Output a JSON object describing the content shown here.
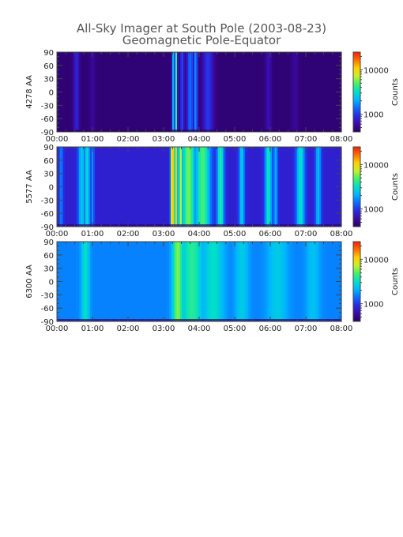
{
  "title": "All-Sky Imager at South Pole (2003-08-23)",
  "subtitle": "Geomagnetic Pole-Equator",
  "colors": {
    "frame": "#444444",
    "text": "#222222",
    "title": "#555555",
    "colormap": [
      "#2a0060",
      "#3b0aa8",
      "#2a2ae0",
      "#0a6cff",
      "#00b4ff",
      "#00e0c8",
      "#40f070",
      "#c8f028",
      "#ffd000",
      "#ff7000",
      "#ff1a00"
    ]
  },
  "chart_data": [
    {
      "type": "heatmap",
      "ylabel": "4278 AA",
      "x_ticks": [
        "00:00",
        "01:00",
        "02:00",
        "03:00",
        "04:00",
        "05:00",
        "06:00",
        "07:00",
        "08:00"
      ],
      "y_ticks": [
        "90",
        "60",
        "30",
        "0",
        "-30",
        "-60",
        "-90"
      ],
      "xlim": [
        "00:00",
        "08:00"
      ],
      "ylim": [
        -90,
        90
      ],
      "colorbar": {
        "label": "Counts",
        "ticks": [
          "10000",
          "1000"
        ],
        "scale": "log"
      },
      "background_level": 0.03,
      "features": [
        {
          "t": 0.55,
          "w": 0.08,
          "level": 0.18
        },
        {
          "t": 1.0,
          "w": 0.08,
          "level": 0.08
        },
        {
          "t": 3.28,
          "w": 0.04,
          "level": 0.45
        },
        {
          "t": 3.35,
          "w": 0.04,
          "level": 0.6
        },
        {
          "t": 3.52,
          "w": 0.06,
          "level": 0.25
        },
        {
          "t": 3.75,
          "w": 0.1,
          "level": 0.3
        },
        {
          "t": 3.9,
          "w": 0.06,
          "level": 0.35
        },
        {
          "t": 4.25,
          "w": 0.15,
          "level": 0.22
        },
        {
          "t": 5.95,
          "w": 0.08,
          "level": 0.12
        },
        {
          "t": 6.7,
          "w": 0.1,
          "level": 0.08
        }
      ]
    },
    {
      "type": "heatmap",
      "ylabel": "5577 AA",
      "x_ticks": [
        "00:00",
        "01:00",
        "02:00",
        "03:00",
        "04:00",
        "05:00",
        "06:00",
        "07:00",
        "08:00"
      ],
      "y_ticks": [
        "90",
        "60",
        "30",
        "0",
        "-30",
        "-60",
        "-90"
      ],
      "xlim": [
        "00:00",
        "08:00"
      ],
      "ylim": [
        -90,
        90
      ],
      "colorbar": {
        "label": "Counts",
        "ticks": [
          "10000",
          "1000"
        ],
        "scale": "log"
      },
      "background_level": 0.17,
      "features": [
        {
          "t": 0.12,
          "w": 0.06,
          "level": 0.32
        },
        {
          "t": 0.7,
          "w": 0.1,
          "level": 0.45
        },
        {
          "t": 0.85,
          "w": 0.08,
          "level": 0.5
        },
        {
          "t": 1.0,
          "w": 0.05,
          "level": 0.35
        },
        {
          "t": 3.25,
          "w": 0.05,
          "level": 0.88
        },
        {
          "t": 3.35,
          "w": 0.05,
          "level": 0.82
        },
        {
          "t": 3.48,
          "w": 0.06,
          "level": 0.7
        },
        {
          "t": 3.7,
          "w": 0.2,
          "level": 0.64
        },
        {
          "t": 4.1,
          "w": 0.22,
          "level": 0.6
        },
        {
          "t": 4.6,
          "w": 0.1,
          "level": 0.55
        },
        {
          "t": 5.2,
          "w": 0.08,
          "level": 0.45
        },
        {
          "t": 5.95,
          "w": 0.1,
          "level": 0.52
        },
        {
          "t": 6.15,
          "w": 0.06,
          "level": 0.4
        },
        {
          "t": 6.85,
          "w": 0.12,
          "level": 0.5
        },
        {
          "t": 7.35,
          "w": 0.08,
          "level": 0.42
        }
      ]
    },
    {
      "type": "heatmap",
      "ylabel": "6300 AA",
      "x_ticks": [
        "00:00",
        "01:00",
        "02:00",
        "03:00",
        "04:00",
        "05:00",
        "06:00",
        "07:00",
        "08:00"
      ],
      "y_ticks": [
        "90",
        "60",
        "30",
        "0",
        "-30",
        "-60",
        "-90"
      ],
      "xlim": [
        "00:00",
        "08:00"
      ],
      "ylim": [
        -90,
        90
      ],
      "colorbar": {
        "label": "Counts",
        "ticks": [
          "10000",
          "1000"
        ],
        "scale": "log"
      },
      "background_level": 0.33,
      "features": [
        {
          "t": 0.8,
          "w": 0.12,
          "level": 0.5
        },
        {
          "t": 3.4,
          "w": 0.15,
          "level": 0.65
        },
        {
          "t": 3.8,
          "w": 0.3,
          "level": 0.56
        },
        {
          "t": 4.4,
          "w": 0.3,
          "level": 0.5
        },
        {
          "t": 5.2,
          "w": 0.2,
          "level": 0.45
        },
        {
          "t": 6.2,
          "w": 0.3,
          "level": 0.45
        },
        {
          "t": 7.2,
          "w": 0.2,
          "level": 0.43
        }
      ]
    }
  ]
}
